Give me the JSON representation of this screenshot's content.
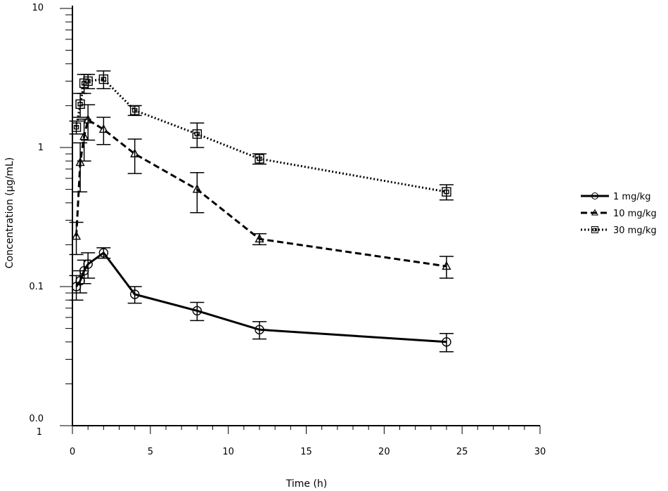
{
  "chart_data": {
    "type": "line",
    "title": "",
    "xlabel": "Time (h)",
    "ylabel": "Concentration (µg/mL)",
    "xlim": [
      0,
      30
    ],
    "ylim": [
      0.01,
      10
    ],
    "yscale": "log",
    "grid": false,
    "legend_position": "right",
    "x_ticks": [
      0,
      5,
      10,
      15,
      20,
      25,
      30
    ],
    "x_tick_labels": [
      "0",
      "5",
      "10",
      "15",
      "20",
      "25",
      "30"
    ],
    "y_ticks": [
      0.01,
      0.1,
      1,
      10
    ],
    "y_tick_labels": [
      "0.0\n1",
      "0.1",
      "1",
      "10"
    ],
    "series": [
      {
        "name": "1 mg/kg",
        "marker": "circle",
        "dash": "solid",
        "x": [
          0.25,
          0.5,
          0.75,
          1,
          2,
          4,
          8,
          12,
          24
        ],
        "y": [
          0.1,
          0.11,
          0.13,
          0.145,
          0.175,
          0.088,
          0.067,
          0.049,
          0.04
        ],
        "err": [
          0.02,
          0.02,
          0.025,
          0.03,
          0.015,
          0.012,
          0.01,
          0.007,
          0.006
        ]
      },
      {
        "name": "10 mg/kg",
        "marker": "triangle",
        "dash": "dashed",
        "x": [
          0.25,
          0.5,
          0.75,
          1,
          2,
          4,
          8,
          12,
          24
        ],
        "y": [
          0.23,
          0.78,
          1.2,
          1.58,
          1.35,
          0.9,
          0.5,
          0.22,
          0.14
        ],
        "err": [
          0.06,
          0.3,
          0.4,
          0.45,
          0.3,
          0.25,
          0.16,
          0.02,
          0.025
        ]
      },
      {
        "name": "30 mg/kg",
        "marker": "square",
        "dash": "dotted",
        "x": [
          0.25,
          0.5,
          0.75,
          1,
          2,
          4,
          8,
          12,
          24
        ],
        "y": [
          1.4,
          2.05,
          2.9,
          3.0,
          3.1,
          1.85,
          1.25,
          0.83,
          0.48
        ],
        "err": [
          0.15,
          0.4,
          0.45,
          0.35,
          0.45,
          0.15,
          0.25,
          0.07,
          0.06
        ]
      }
    ]
  }
}
